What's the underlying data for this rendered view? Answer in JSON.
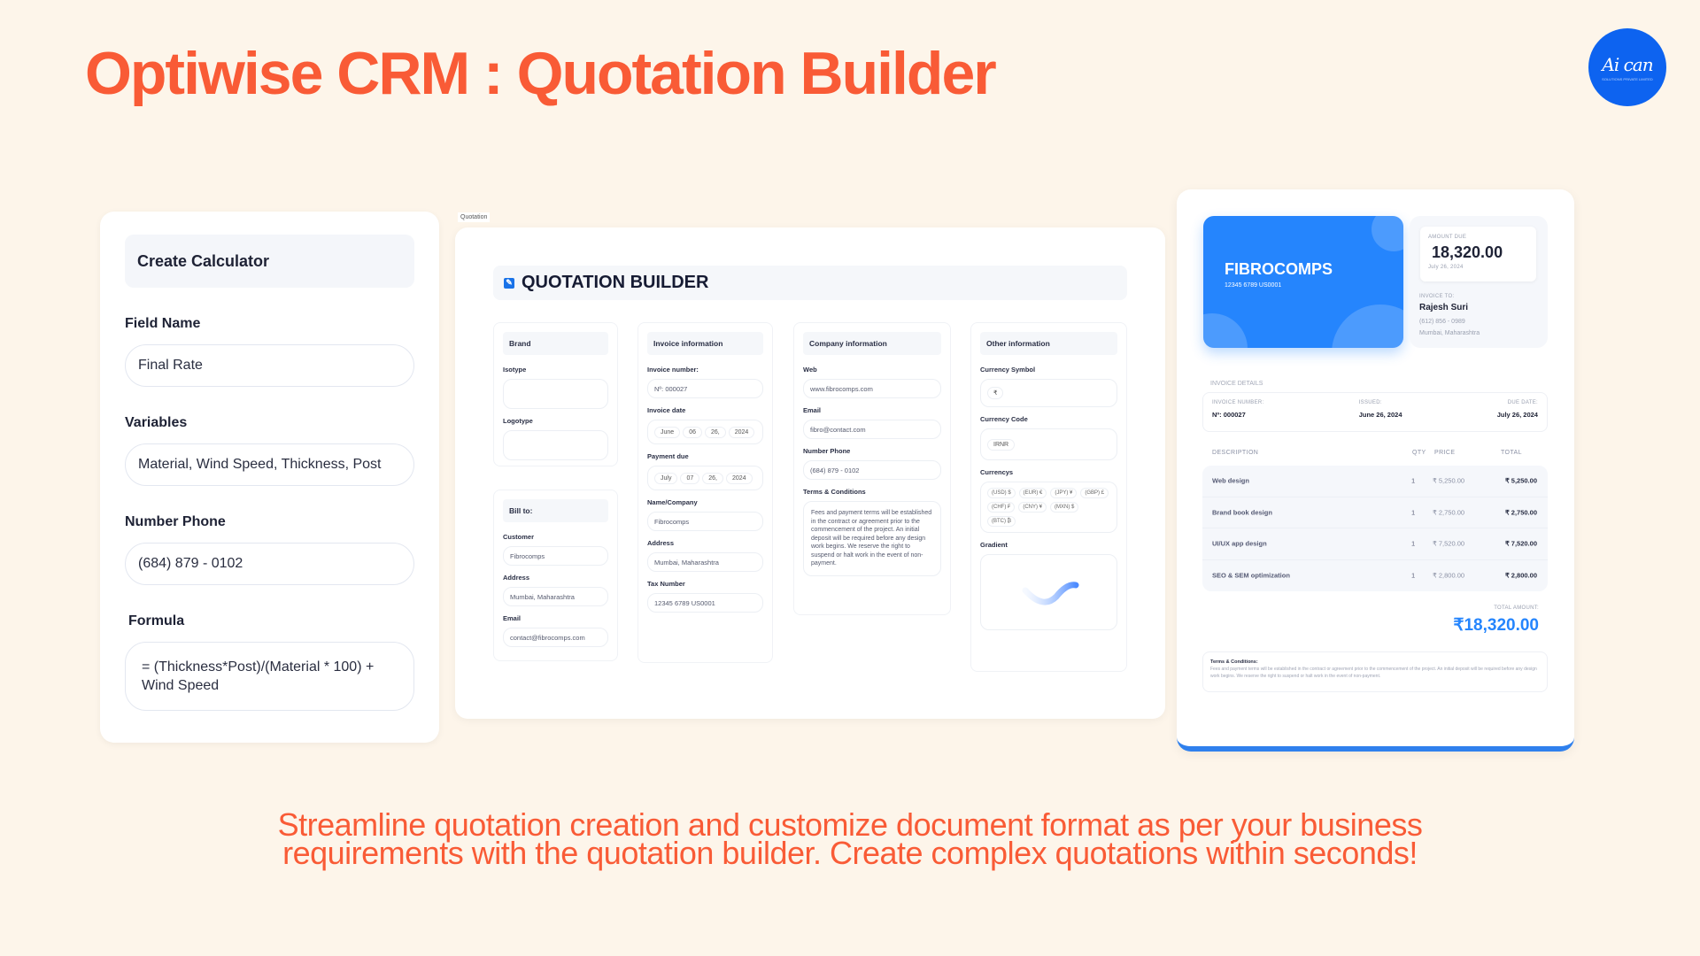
{
  "title": "Optiwise CRM : Quotation Builder",
  "logo": {
    "text": "Ai can",
    "subtext": "SOLUTIONS PRIVATE LIMITED",
    "color": "#0d63f0"
  },
  "calculator": {
    "header": "Create Calculator",
    "fields": [
      {
        "label": "Field Name",
        "value": "Final Rate"
      },
      {
        "label": "Variables",
        "value": "Material, Wind Speed, Thickness, Post"
      },
      {
        "label": "Number Phone",
        "value": "(684) 879 - 0102"
      },
      {
        "label": "Formula",
        "value": "= (Thickness*Post)/(Material * 100) + Wind Speed"
      }
    ]
  },
  "quotation": {
    "tab_label": "Quotation",
    "title": "QUOTATION BUILDER",
    "brand": {
      "header": "Brand",
      "isotype": "Isotype",
      "logotype": "Logotype"
    },
    "bill_to": {
      "header": "Bill to:",
      "customer_label": "Customer",
      "customer": "Fibrocomps",
      "address_label": "Address",
      "address": "Mumbai, Maharashtra",
      "email_label": "Email",
      "email": "contact@fibrocomps.com"
    },
    "invoice_info": {
      "header": "Invoice information",
      "number_label": "Invoice number:",
      "number": "Nº: 000027",
      "date_label": "Invoice date",
      "date": [
        "June",
        "06",
        "26,",
        "2024"
      ],
      "due_label": "Payment due",
      "due": [
        "July",
        "07",
        "26,",
        "2024"
      ],
      "name_label": "Name/Company",
      "name": "Fibrocomps",
      "address_label": "Address",
      "address": "Mumbai, Maharashtra",
      "tax_label": "Tax Number",
      "tax": "12345 6789 US0001"
    },
    "company_info": {
      "header": "Company information",
      "web_label": "Web",
      "web": "www.fibrocomps.com",
      "email_label": "Email",
      "email": "fibro@contact.com",
      "phone_label": "Number Phone",
      "phone": "(684) 879 - 0102",
      "terms_label": "Terms & Conditions",
      "terms": "Fees and payment terms will be established in the contract or agreement prior to the commencement of the project. An initial deposit will be required before any design work begins. We reserve the right to suspend or halt work in the event of non-payment."
    },
    "other_info": {
      "header": "Other information",
      "symbol_label": "Currency Symbol",
      "symbol": "₹",
      "code_label": "Currency Code",
      "code": "IRNR",
      "currencies_label": "Currencys",
      "currencies": [
        "(USD) $",
        "(EUR) €",
        "(JPY) ¥",
        "(GBP) £",
        "(CHF) ₣",
        "(CNY) ¥",
        "(MXN) $",
        "(BTC) ₿"
      ],
      "gradient_label": "Gradient"
    }
  },
  "invoice": {
    "company": "FIBROCOMPS",
    "company_id": "12345 6789 US0001",
    "amount_due_label": "AMOUNT DUE",
    "amount_due": "18,320.00",
    "amount_due_date": "July 26, 2024",
    "invoice_to_label": "INVOICE TO:",
    "client": "Rajesh Suri",
    "client_phone": "(612) 856 - 0989",
    "client_address": "Mumbai, Maharashtra",
    "details_label": "INVOICE DETAILS",
    "number_label": "INVOICE NUMBER:",
    "number": "Nº: 000027",
    "issued_label": "ISSUED:",
    "issued": "June 26, 2024",
    "due_label": "DUE DATE:",
    "due": "July 26, 2024",
    "columns": [
      "DESCRIPTION",
      "QTY",
      "PRICE",
      "TOTAL"
    ],
    "items": [
      {
        "description": "Web design",
        "qty": "1",
        "price": "₹ 5,250.00",
        "total": "₹ 5,250.00"
      },
      {
        "description": "Brand book design",
        "qty": "1",
        "price": "₹ 2,750.00",
        "total": "₹ 2,750.00"
      },
      {
        "description": "UI/UX app design",
        "qty": "1",
        "price": "₹ 7,520.00",
        "total": "₹ 7,520.00"
      },
      {
        "description": "SEO & SEM optimization",
        "qty": "1",
        "price": "₹ 2,800.00",
        "total": "₹ 2,800.00"
      }
    ],
    "total_label": "TOTAL AMOUNT:",
    "total": "₹18,320.00",
    "terms_label": "Terms & Conditions:",
    "terms": "Fees and payment terms will be established in the contract or agreement prior to the commencement of the project. An initial deposit will be required before any design work begins. We reserve the right to suspend or halt work in the event of non-payment.",
    "accent": "#2585fd"
  },
  "tagline": [
    "Streamline quotation creation and customize document format as per your business",
    "requirements with the quotation builder. Create complex quotations within seconds!"
  ],
  "colors": {
    "background": "#fdf5ea",
    "accent": "#f95b36"
  }
}
